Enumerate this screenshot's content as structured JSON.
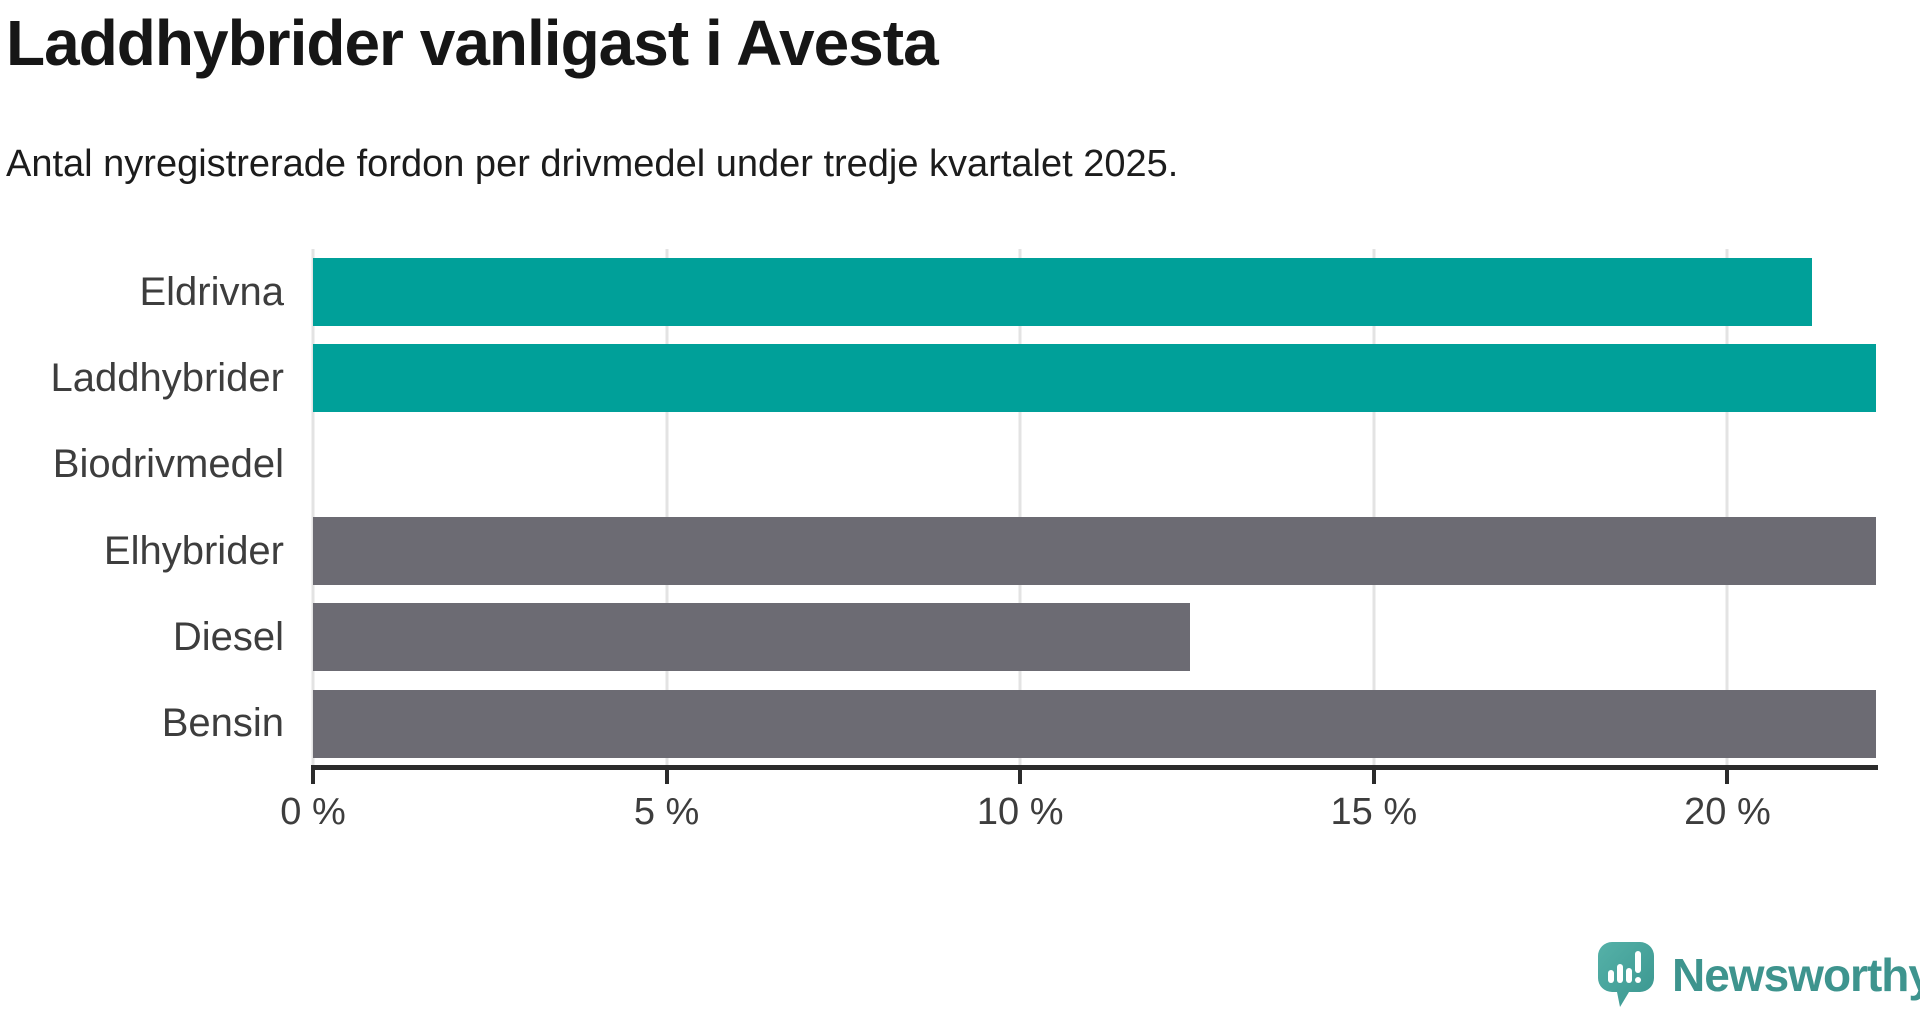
{
  "header": {
    "title": "Laddhybrider vanligast i Avesta",
    "subtitle": "Antal nyregistrerade fordon per drivmedel under tredje kvartalet 2025."
  },
  "chart_data": {
    "type": "bar",
    "orientation": "horizontal",
    "title": "Laddhybrider vanligast i Avesta",
    "subtitle": "Antal nyregistrerade fordon per drivmedel under tredje kvartalet 2025.",
    "categories": [
      "Eldrivna",
      "Laddhybrider",
      "Biodrivmedel",
      "Elhybrider",
      "Diesel",
      "Bensin"
    ],
    "values": [
      21.2,
      22.1,
      0,
      22.1,
      12.4,
      22.1
    ],
    "unit": "%",
    "xlim": [
      0,
      22.1
    ],
    "x_ticks": [
      0,
      5,
      10,
      15,
      20
    ],
    "x_tick_labels": [
      "0 %",
      "5 %",
      "10 %",
      "15 %",
      "20 %"
    ],
    "grid": "vertical light gridlines at each x tick, bars drawn on top",
    "legend": "none",
    "series_colors": [
      "#00a099",
      "#00a099",
      "#00a099",
      "#6c6b73",
      "#6c6b73",
      "#6c6b73"
    ]
  },
  "colors": {
    "bar_teal": "#00a099",
    "bar_gray": "#6c6b73",
    "gridline": "#e3e3e3",
    "axis": "#2b2b2b",
    "title_text": "#161616",
    "label_text": "#3d3d3d",
    "logo_bubble": "#4aa49c",
    "logo_text": "#3e948e"
  },
  "footer": {
    "logo_text": "Newsworthy"
  }
}
